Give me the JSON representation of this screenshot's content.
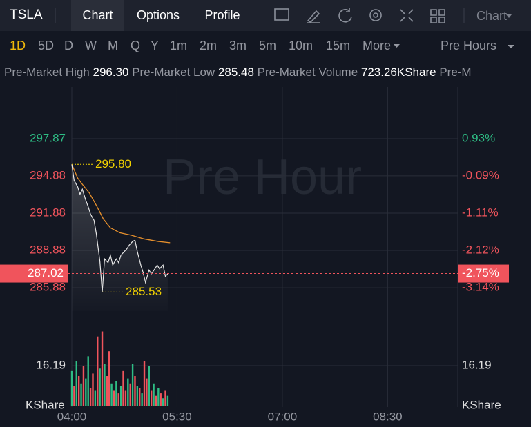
{
  "header": {
    "symbol": "TSLA",
    "tabs": [
      "Chart",
      "Options",
      "Profile"
    ],
    "active_tab": 0,
    "chart_menu": "Chart"
  },
  "periods": {
    "items": [
      "1D",
      "5D",
      "D",
      "W",
      "M",
      "Q",
      "Y",
      "1m",
      "2m",
      "3m",
      "5m",
      "10m",
      "15m",
      "More"
    ],
    "active": 0,
    "session": "Pre Hours"
  },
  "stats": [
    {
      "label": "Pre-Market High",
      "value": "296.30"
    },
    {
      "label": "Pre-Market Low",
      "value": "285.48"
    },
    {
      "label": "Pre-Market Volume",
      "value": "723.26KShare"
    },
    {
      "label": "Pre-M"
    }
  ],
  "chart": {
    "watermark": "Pre Hour",
    "up_color": "#2ebd85",
    "down_color": "#f0545c",
    "line_color": "#e8e8e8",
    "avg_color": "#e8912d",
    "xlim": [
      0,
      330
    ],
    "xticks": [
      {
        "value": 0,
        "label": "04:00"
      },
      {
        "value": 90,
        "label": "05:30"
      },
      {
        "value": 180,
        "label": "07:00"
      },
      {
        "value": 270,
        "label": "08:30"
      }
    ],
    "ylim": [
      284,
      302
    ],
    "yticks": [
      297.87,
      294.88,
      291.88,
      288.88,
      285.88
    ],
    "pct_ticks": [
      "0.93%",
      "-0.09%",
      "-1.11%",
      "-2.12%",
      "-3.14%"
    ],
    "current": {
      "value": 287.02,
      "pct": "-2.75%"
    },
    "high": {
      "x": 0,
      "value": 295.8,
      "label": "295.80"
    },
    "low": {
      "x": 26,
      "value": 285.53,
      "label": "285.53"
    },
    "price": {
      "x": [
        0,
        2,
        5,
        7,
        9,
        12,
        14,
        16,
        19,
        21,
        24,
        26,
        28,
        31,
        33,
        35,
        38,
        40,
        42,
        45,
        47,
        49,
        52,
        54,
        56,
        59,
        61,
        63,
        66,
        68,
        71,
        73,
        75,
        78,
        80,
        82
      ],
      "values": [
        295.8,
        294.5,
        294.0,
        293.4,
        293.8,
        292.9,
        292.4,
        291.8,
        291.3,
        290.2,
        288.0,
        285.53,
        288.2,
        287.9,
        288.5,
        287.7,
        288.2,
        287.9,
        288.5,
        288.8,
        289.0,
        289.3,
        289.6,
        289.7,
        288.8,
        287.7,
        287.1,
        286.3,
        287.3,
        287.0,
        287.4,
        287.7,
        287.4,
        287.7,
        286.8,
        287.0
      ]
    },
    "avg": {
      "x": [
        0,
        5,
        9,
        15,
        21,
        27,
        33,
        41,
        51,
        62,
        74,
        84
      ],
      "values": [
        295.8,
        294.7,
        294.2,
        293.5,
        292.5,
        291.4,
        290.7,
        290.3,
        290.1,
        289.8,
        289.6,
        289.5
      ]
    },
    "volume": {
      "unit": "KShare",
      "ylim": [
        0,
        32.38
      ],
      "yticks": [
        16.19
      ],
      "x": [
        0,
        2,
        4,
        6,
        8,
        10,
        12,
        14,
        16,
        18,
        20,
        22,
        24,
        26,
        28,
        30,
        32,
        34,
        36,
        38,
        40,
        42,
        44,
        46,
        48,
        50,
        52,
        54,
        56,
        58,
        60,
        62,
        64,
        66,
        68,
        70,
        72,
        74,
        76,
        78,
        80,
        82
      ],
      "values": [
        14,
        8,
        18,
        12,
        9,
        16,
        11,
        20,
        7,
        13,
        6,
        28,
        15,
        30,
        17,
        12,
        22,
        9,
        6,
        10,
        5,
        8,
        14,
        6,
        11,
        9,
        17,
        12,
        8,
        7,
        5,
        18,
        11,
        16,
        6,
        9,
        4,
        7,
        5,
        3,
        6,
        4
      ],
      "rising": [
        true,
        false,
        true,
        false,
        true,
        false,
        true,
        true,
        false,
        false,
        true,
        false,
        true,
        false,
        true,
        false,
        false,
        true,
        false,
        true,
        false,
        true,
        false,
        false,
        true,
        false,
        true,
        false,
        true,
        false,
        true,
        false,
        false,
        true,
        false,
        true,
        false,
        true,
        false,
        true,
        false,
        true
      ]
    }
  }
}
